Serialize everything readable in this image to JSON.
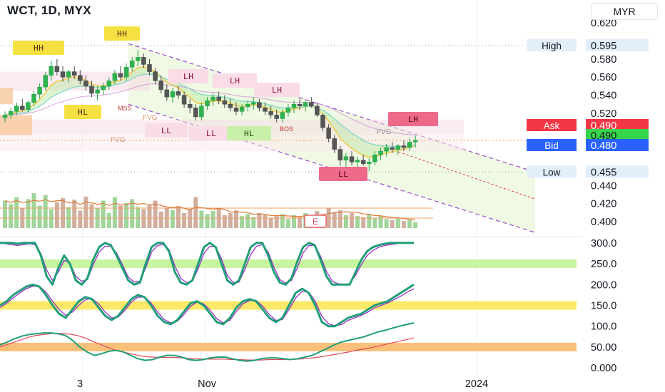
{
  "header": {
    "title": "WCT, 1D, MYX",
    "currency": "MYR"
  },
  "chart_data": {
    "type": "candlestick",
    "price_axis": {
      "ticks": [
        "0.620",
        "0.580",
        "0.560",
        "0.540",
        "0.520",
        "0.440",
        "0.420",
        "0.400"
      ],
      "range": [
        0.385,
        0.628
      ]
    },
    "x_axis": {
      "ticks": [
        "3",
        "Nov",
        "2024"
      ]
    },
    "quote": {
      "high_label": "High",
      "high": "0.595",
      "ask_label": "Ask",
      "ask": "0.490",
      "last": "0.490",
      "bid_label": "Bid",
      "bid": "0.480",
      "low_label": "Low",
      "low": "0.455"
    },
    "ohlc": [
      [
        0.515,
        0.522,
        0.51,
        0.518
      ],
      [
        0.518,
        0.526,
        0.514,
        0.522
      ],
      [
        0.522,
        0.532,
        0.518,
        0.528
      ],
      [
        0.528,
        0.536,
        0.522,
        0.524
      ],
      [
        0.524,
        0.534,
        0.52,
        0.532
      ],
      [
        0.532,
        0.545,
        0.528,
        0.541
      ],
      [
        0.541,
        0.553,
        0.536,
        0.549
      ],
      [
        0.549,
        0.566,
        0.545,
        0.562
      ],
      [
        0.562,
        0.578,
        0.556,
        0.572
      ],
      [
        0.572,
        0.58,
        0.562,
        0.566
      ],
      [
        0.566,
        0.572,
        0.555,
        0.56
      ],
      [
        0.56,
        0.568,
        0.554,
        0.566
      ],
      [
        0.566,
        0.572,
        0.558,
        0.562
      ],
      [
        0.562,
        0.568,
        0.552,
        0.556
      ],
      [
        0.556,
        0.562,
        0.545,
        0.55
      ],
      [
        0.55,
        0.556,
        0.538,
        0.542
      ],
      [
        0.542,
        0.55,
        0.534,
        0.546
      ],
      [
        0.546,
        0.554,
        0.54,
        0.55
      ],
      [
        0.55,
        0.56,
        0.546,
        0.556
      ],
      [
        0.556,
        0.568,
        0.552,
        0.564
      ],
      [
        0.564,
        0.572,
        0.556,
        0.56
      ],
      [
        0.56,
        0.575,
        0.556,
        0.571
      ],
      [
        0.571,
        0.582,
        0.566,
        0.578
      ],
      [
        0.578,
        0.59,
        0.572,
        0.582
      ],
      [
        0.582,
        0.586,
        0.57,
        0.574
      ],
      [
        0.574,
        0.58,
        0.562,
        0.566
      ],
      [
        0.566,
        0.57,
        0.552,
        0.556
      ],
      [
        0.556,
        0.562,
        0.542,
        0.546
      ],
      [
        0.546,
        0.552,
        0.534,
        0.538
      ],
      [
        0.538,
        0.548,
        0.532,
        0.544
      ],
      [
        0.544,
        0.55,
        0.536,
        0.54
      ],
      [
        0.54,
        0.544,
        0.526,
        0.53
      ],
      [
        0.53,
        0.536,
        0.52,
        0.526
      ],
      [
        0.526,
        0.53,
        0.512,
        0.516
      ],
      [
        0.516,
        0.532,
        0.512,
        0.528
      ],
      [
        0.528,
        0.538,
        0.524,
        0.534
      ],
      [
        0.534,
        0.542,
        0.528,
        0.538
      ],
      [
        0.538,
        0.544,
        0.53,
        0.534
      ],
      [
        0.534,
        0.54,
        0.526,
        0.53
      ],
      [
        0.53,
        0.536,
        0.522,
        0.526
      ],
      [
        0.526,
        0.532,
        0.518,
        0.522
      ],
      [
        0.522,
        0.53,
        0.518,
        0.527
      ],
      [
        0.527,
        0.534,
        0.522,
        0.53
      ],
      [
        0.53,
        0.538,
        0.524,
        0.532
      ],
      [
        0.532,
        0.536,
        0.522,
        0.526
      ],
      [
        0.526,
        0.532,
        0.518,
        0.522
      ],
      [
        0.522,
        0.528,
        0.514,
        0.518
      ],
      [
        0.518,
        0.524,
        0.51,
        0.514
      ],
      [
        0.514,
        0.524,
        0.51,
        0.521
      ],
      [
        0.521,
        0.53,
        0.516,
        0.526
      ],
      [
        0.526,
        0.534,
        0.52,
        0.53
      ],
      [
        0.53,
        0.536,
        0.524,
        0.528
      ],
      [
        0.528,
        0.534,
        0.522,
        0.532
      ],
      [
        0.532,
        0.538,
        0.526,
        0.528
      ],
      [
        0.528,
        0.532,
        0.516,
        0.518
      ],
      [
        0.518,
        0.52,
        0.5,
        0.504
      ],
      [
        0.504,
        0.508,
        0.488,
        0.492
      ],
      [
        0.492,
        0.496,
        0.476,
        0.48
      ],
      [
        0.48,
        0.484,
        0.462,
        0.468
      ],
      [
        0.468,
        0.476,
        0.458,
        0.472
      ],
      [
        0.472,
        0.478,
        0.462,
        0.466
      ],
      [
        0.466,
        0.472,
        0.46,
        0.468
      ],
      [
        0.468,
        0.474,
        0.462,
        0.464
      ],
      [
        0.464,
        0.47,
        0.456,
        0.466
      ],
      [
        0.466,
        0.478,
        0.462,
        0.474
      ],
      [
        0.474,
        0.482,
        0.468,
        0.478
      ],
      [
        0.478,
        0.486,
        0.472,
        0.482
      ],
      [
        0.482,
        0.488,
        0.476,
        0.48
      ],
      [
        0.48,
        0.486,
        0.474,
        0.484
      ],
      [
        0.484,
        0.49,
        0.478,
        0.482
      ],
      [
        0.482,
        0.492,
        0.478,
        0.488
      ],
      [
        0.488,
        0.495,
        0.482,
        0.49
      ]
    ],
    "volume": [
      0.55,
      0.48,
      0.62,
      0.4,
      0.58,
      0.7,
      0.45,
      0.66,
      0.38,
      0.52,
      0.6,
      0.42,
      0.57,
      0.35,
      0.63,
      0.48,
      0.4,
      0.55,
      0.3,
      0.62,
      0.45,
      0.5,
      0.58,
      0.42,
      0.38,
      0.46,
      0.55,
      0.33,
      0.4,
      0.36,
      0.44,
      0.3,
      0.38,
      0.62,
      0.35,
      0.28,
      0.34,
      0.4,
      0.26,
      0.3,
      0.36,
      0.24,
      0.28,
      0.22,
      0.3,
      0.26,
      0.2,
      0.24,
      0.28,
      0.18,
      0.26,
      0.22,
      0.3,
      0.2,
      0.34,
      0.28,
      0.4,
      0.32,
      0.36,
      0.26,
      0.3,
      0.24,
      0.22,
      0.28,
      0.2,
      0.24,
      0.18,
      0.16,
      0.2,
      0.14,
      0.16,
      0.12
    ],
    "structure_labels": {
      "hh": "HH",
      "hl": "HL",
      "lh": "LH",
      "ll": "LL",
      "fvg": "FVG",
      "mss": "MSS",
      "bos": "BOS",
      "earnings": "E"
    },
    "oscillators": {
      "axis_ticks": [
        "300.0",
        "250.0",
        "200.0",
        "150.0",
        "100.0",
        "50.00",
        "0.000"
      ],
      "range": [
        -10,
        310
      ],
      "bands": [
        250,
        150,
        50
      ],
      "stoch_fast": [
        [
          300,
          300,
          300,
          298,
          300,
          300,
          300,
          270,
          220,
          200,
          240,
          270,
          250,
          210,
          200,
          215,
          260,
          290,
          300,
          295,
          270,
          240,
          210,
          200,
          205,
          250,
          290,
          300,
          300,
          280,
          230,
          205,
          200,
          210,
          250,
          290,
          300,
          290,
          250,
          210,
          200,
          210,
          250,
          290,
          300,
          300,
          270,
          230,
          205,
          200,
          215,
          255,
          290,
          300,
          295,
          260,
          220,
          200,
          200,
          200,
          200,
          230,
          260,
          280,
          290,
          295,
          298,
          300,
          300,
          300,
          300,
          300
        ],
        [
          300,
          298,
          296,
          294,
          296,
          298,
          296,
          275,
          235,
          210,
          230,
          258,
          252,
          220,
          208,
          212,
          248,
          278,
          292,
          292,
          276,
          248,
          218,
          206,
          208,
          240,
          278,
          294,
          296,
          284,
          245,
          215,
          205,
          208,
          238,
          275,
          292,
          290,
          262,
          222,
          205,
          206,
          236,
          272,
          292,
          296,
          278,
          242,
          212,
          204,
          210,
          240,
          276,
          294,
          294,
          268,
          232,
          208,
          202,
          200,
          202,
          222,
          248,
          270,
          282,
          290,
          294,
          296,
          298,
          300,
          300,
          300
        ]
      ],
      "stoch_mid": [
        [
          150,
          160,
          175,
          185,
          195,
          200,
          195,
          175,
          150,
          130,
          120,
          140,
          160,
          170,
          165,
          145,
          125,
          115,
          125,
          145,
          165,
          175,
          170,
          150,
          125,
          110,
          105,
          115,
          135,
          155,
          160,
          150,
          130,
          110,
          105,
          120,
          145,
          160,
          165,
          160,
          140,
          120,
          110,
          120,
          150,
          180,
          190,
          180,
          150,
          110,
          100,
          100,
          110,
          120,
          125,
          130,
          140,
          150,
          155,
          160,
          170,
          180,
          190,
          200
        ],
        [
          145,
          155,
          168,
          180,
          190,
          196,
          196,
          182,
          160,
          140,
          126,
          134,
          150,
          164,
          166,
          154,
          134,
          120,
          122,
          138,
          158,
          170,
          170,
          156,
          134,
          116,
          108,
          112,
          128,
          148,
          158,
          154,
          138,
          118,
          108,
          114,
          136,
          154,
          162,
          162,
          148,
          128,
          114,
          116,
          140,
          168,
          184,
          182,
          160,
          124,
          106,
          101,
          104,
          114,
          120,
          126,
          134,
          144,
          150,
          156,
          164,
          172,
          182,
          190
        ]
      ],
      "momentum": [
        [
          55,
          62,
          70,
          76,
          80,
          82,
          84,
          84,
          82,
          78,
          66,
          50,
          38,
          30,
          34,
          40,
          42,
          38,
          30,
          22,
          18,
          20,
          26,
          30,
          30,
          26,
          20,
          18,
          20,
          24,
          26,
          26,
          22,
          18,
          16,
          18,
          22,
          24,
          24,
          22,
          20,
          22,
          26,
          30,
          38,
          46,
          55,
          62,
          66,
          70,
          74,
          80,
          86,
          90,
          95,
          100,
          104,
          108
        ],
        [
          50,
          56,
          62,
          68,
          74,
          78,
          80,
          82,
          83,
          82,
          80,
          76,
          70,
          62,
          55,
          48,
          42,
          38,
          34,
          30,
          27,
          26,
          25,
          25,
          25,
          24,
          23,
          22,
          21,
          21,
          21,
          21,
          20,
          20,
          19,
          19,
          19,
          20,
          20,
          20,
          20,
          21,
          22,
          24,
          26,
          29,
          32,
          35,
          38,
          42,
          45,
          48,
          52,
          56,
          60,
          64,
          68,
          72
        ]
      ]
    }
  }
}
